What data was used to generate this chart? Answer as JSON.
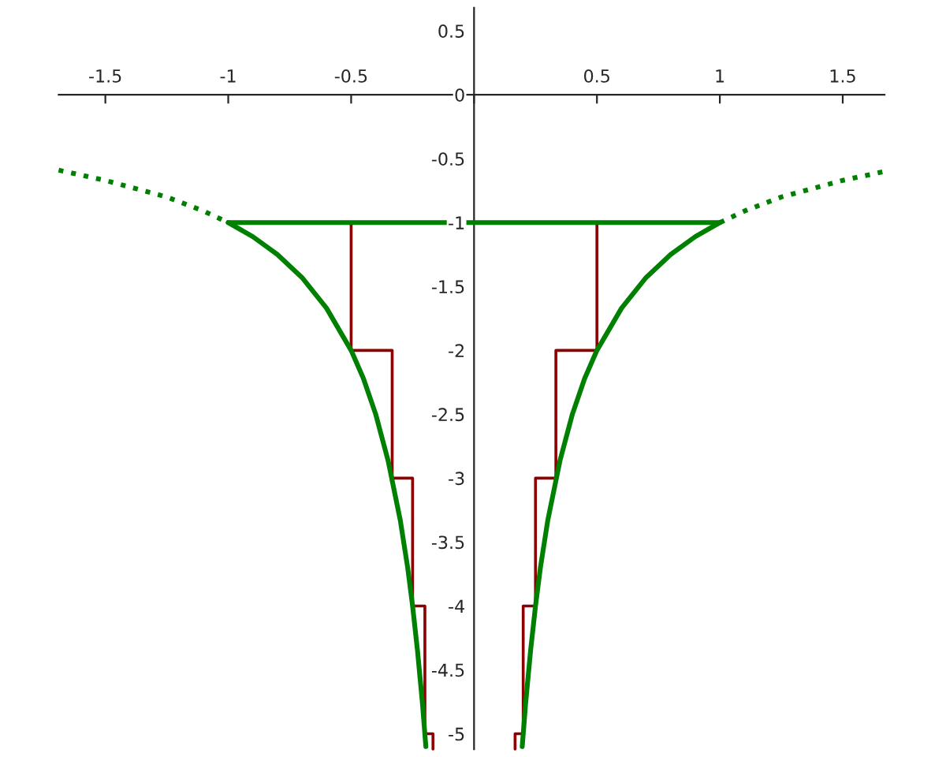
{
  "chart_data": {
    "type": "line",
    "xlim": [
      -1.69,
      1.67
    ],
    "ylim": [
      -5.12,
      0.68
    ],
    "xticks": [
      -1.5,
      -1,
      -0.5,
      {
        "value": 0,
        "label": null
      },
      0.5,
      1,
      1.5
    ],
    "yticks": [
      0.5,
      0,
      -0.5,
      -1,
      -1.5,
      -2,
      -2.5,
      -3,
      -3.5,
      -4,
      -4.5,
      -5
    ],
    "grid": false,
    "legend": false,
    "series": [
      {
        "color": "#008000",
        "line_style": "solid",
        "x": [
          -1,
          -0.9,
          -0.8,
          -0.7,
          -0.6,
          -0.5,
          -0.45,
          -0.4,
          -0.35,
          -0.3,
          -0.27,
          -0.25,
          -0.23,
          -0.21,
          -0.196
        ],
        "values": [
          -1,
          -1.11,
          -1.25,
          -1.43,
          -1.67,
          -2,
          -2.22,
          -2.5,
          -2.86,
          -3.33,
          -3.7,
          -4,
          -4.35,
          -4.76,
          -5.1
        ]
      },
      {
        "color": "#008000",
        "line_style": "solid",
        "x": [
          1,
          0.9,
          0.8,
          0.7,
          0.6,
          0.5,
          0.45,
          0.4,
          0.35,
          0.3,
          0.27,
          0.25,
          0.23,
          0.21,
          0.196
        ],
        "values": [
          -1,
          -1.11,
          -1.25,
          -1.43,
          -1.67,
          -2,
          -2.22,
          -2.5,
          -2.86,
          -3.33,
          -3.7,
          -4,
          -4.35,
          -4.76,
          -5.1
        ]
      },
      {
        "color": "#008000",
        "line_style": "dotted",
        "x": [
          -1.69,
          -1.5,
          -1.25,
          -1.1,
          -1
        ],
        "values": [
          -0.59,
          -0.67,
          -0.8,
          -0.91,
          -1
        ]
      },
      {
        "color": "#008000",
        "line_style": "dotted",
        "x": [
          1,
          1.1,
          1.25,
          1.5,
          1.67
        ],
        "values": [
          -1,
          -0.91,
          -0.8,
          -0.67,
          -0.6
        ]
      },
      {
        "color": "#008000",
        "line_style": "solid",
        "x": [
          -1,
          1
        ],
        "values": [
          -1,
          -1
        ]
      },
      {
        "color": "#8b0000",
        "line_style": "solid",
        "x": [
          -0.5,
          -0.5,
          -0.333,
          -0.333,
          -0.25,
          -0.25,
          -0.2,
          -0.2,
          -0.167,
          -0.167
        ],
        "values": [
          -1,
          -2,
          -2,
          -3,
          -3,
          -4,
          -4,
          -5,
          -5,
          -5.12
        ]
      },
      {
        "color": "#8b0000",
        "line_style": "solid",
        "x": [
          0.5,
          0.5,
          0.333,
          0.333,
          0.25,
          0.25,
          0.2,
          0.2,
          0.167,
          0.167
        ],
        "values": [
          -1,
          -2,
          -2,
          -3,
          -3,
          -4,
          -4,
          -5,
          -5,
          -5.12
        ]
      }
    ]
  }
}
